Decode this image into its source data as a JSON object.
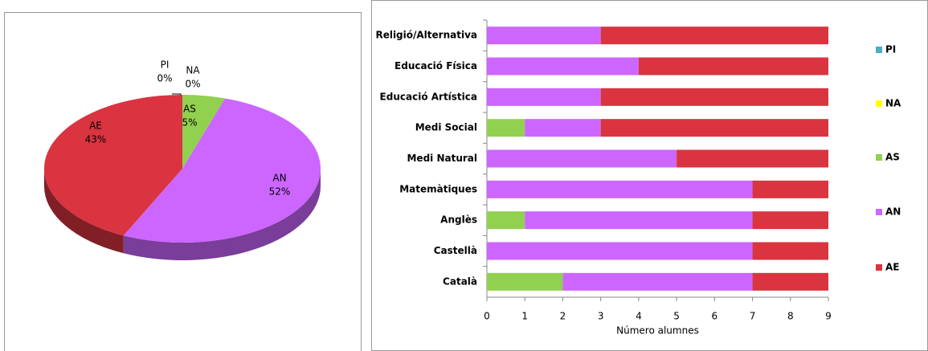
{
  "chart_data": [
    {
      "type": "pie",
      "categories": [
        "PI",
        "NA",
        "AS",
        "AN",
        "AE"
      ],
      "values": [
        0,
        0,
        5,
        52,
        43
      ],
      "value_labels": [
        "0%",
        "0%",
        "5%",
        "52%",
        "43%"
      ],
      "colors": [
        "#4bacc6",
        "#ffff00",
        "#92d050",
        "#cc66ff",
        "#d9343f"
      ]
    },
    {
      "type": "stacked_barh",
      "categories": [
        "Religió/Alternativa",
        "Educació Física",
        "Educació Artística",
        "Medi Social",
        "Medi Natural",
        "Matemàtiques",
        "Anglès",
        "Castellà",
        "Català"
      ],
      "series": [
        {
          "name": "PI",
          "color": "#4bacc6",
          "values": [
            0,
            0,
            0,
            0,
            0,
            0,
            0,
            0,
            0
          ]
        },
        {
          "name": "NA",
          "color": "#ffff00",
          "values": [
            0,
            0,
            0,
            0,
            0,
            0,
            0,
            0,
            0
          ]
        },
        {
          "name": "AS",
          "color": "#92d050",
          "values": [
            0,
            0,
            0,
            1,
            0,
            0,
            1,
            0,
            2
          ]
        },
        {
          "name": "AN",
          "color": "#cc66ff",
          "values": [
            3,
            4,
            3,
            2,
            5,
            7,
            6,
            7,
            5
          ]
        },
        {
          "name": "AE",
          "color": "#d9343f",
          "values": [
            6,
            5,
            6,
            6,
            4,
            2,
            2,
            2,
            2
          ]
        }
      ],
      "xlabel": "Número alumnes",
      "xlim": [
        0,
        9
      ],
      "xticks": [
        0,
        1,
        2,
        3,
        4,
        5,
        6,
        7,
        8,
        9
      ],
      "legend": "right"
    }
  ]
}
